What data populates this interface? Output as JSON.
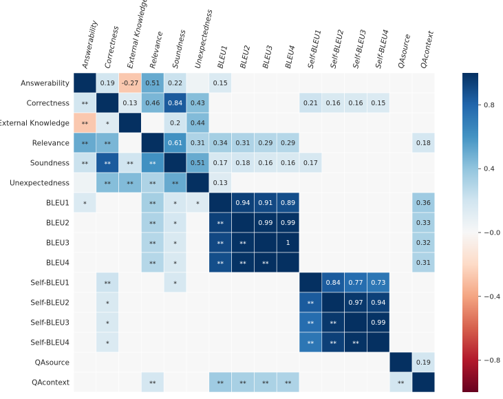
{
  "chart_data": {
    "type": "heatmap",
    "title": "",
    "rows": [
      "Answerability",
      "Correctness",
      "External Knowledge",
      "Relevance",
      "Soundness",
      "Unexpectedness",
      "BLEU1",
      "BLEU2",
      "BLEU3",
      "BLEU4",
      "Self-BLEU1",
      "Self-BLEU2",
      "Self-BLEU3",
      "Self-BLEU4",
      "QAsource",
      "QAcontext"
    ],
    "columns": [
      "Answerability",
      "Correctness",
      "External Knowledge",
      "Relevance",
      "Soundness",
      "Unexpectedness",
      "BLEU1",
      "BLEU2",
      "BLEU3",
      "BLEU4",
      "Self-BLEU1",
      "Self-BLEU2",
      "Self-BLEU3",
      "Self-BLEU4",
      "QAsource",
      "QAcontext"
    ],
    "values": [
      [
        1.0,
        0.19,
        -0.27,
        0.51,
        0.22,
        0.05,
        0.15,
        0.0,
        0.0,
        0.0,
        0.0,
        0.0,
        0.0,
        0.0,
        0.0,
        0.0
      ],
      [
        0.19,
        1.0,
        0.13,
        0.46,
        0.84,
        0.43,
        0.0,
        0.0,
        0.0,
        0.0,
        0.21,
        0.16,
        0.16,
        0.15,
        0.0,
        0.0
      ],
      [
        -0.27,
        0.13,
        1.0,
        0.0,
        0.2,
        0.44,
        0.0,
        0.0,
        0.0,
        0.0,
        0.0,
        0.0,
        0.0,
        0.0,
        0.0,
        0.0
      ],
      [
        0.51,
        0.46,
        0.0,
        1.0,
        0.61,
        0.31,
        0.34,
        0.31,
        0.29,
        0.29,
        0.0,
        0.0,
        0.0,
        0.0,
        0.0,
        0.18
      ],
      [
        0.22,
        0.84,
        0.2,
        0.61,
        1.0,
        0.51,
        0.17,
        0.18,
        0.16,
        0.16,
        0.17,
        0.0,
        0.0,
        0.0,
        0.0,
        0.0
      ],
      [
        0.05,
        0.43,
        0.44,
        0.31,
        0.51,
        1.0,
        0.13,
        0.0,
        0.0,
        0.0,
        0.0,
        0.0,
        0.0,
        0.0,
        0.0,
        0.0
      ],
      [
        0.15,
        0.0,
        0.0,
        0.34,
        0.17,
        0.13,
        1.0,
        0.94,
        0.91,
        0.89,
        0.0,
        0.0,
        0.0,
        0.0,
        0.0,
        0.36
      ],
      [
        0.0,
        0.0,
        0.0,
        0.31,
        0.18,
        0.0,
        0.94,
        1.0,
        0.99,
        0.99,
        0.0,
        0.0,
        0.0,
        0.0,
        0.0,
        0.33
      ],
      [
        0.0,
        0.0,
        0.0,
        0.29,
        0.16,
        0.0,
        0.91,
        0.99,
        1.0,
        1.0,
        0.0,
        0.0,
        0.0,
        0.0,
        0.0,
        0.32
      ],
      [
        0.0,
        0.0,
        0.0,
        0.29,
        0.16,
        0.0,
        0.89,
        0.99,
        1.0,
        1.0,
        0.0,
        0.0,
        0.0,
        0.0,
        0.0,
        0.31
      ],
      [
        0.0,
        0.21,
        0.0,
        0.0,
        0.17,
        0.0,
        0.0,
        0.0,
        0.0,
        0.0,
        1.0,
        0.84,
        0.77,
        0.73,
        0.0,
        0.0
      ],
      [
        0.0,
        0.16,
        0.0,
        0.0,
        0.0,
        0.0,
        0.0,
        0.0,
        0.0,
        0.0,
        0.84,
        1.0,
        0.97,
        0.94,
        0.0,
        0.0
      ],
      [
        0.0,
        0.16,
        0.0,
        0.0,
        0.0,
        0.0,
        0.0,
        0.0,
        0.0,
        0.0,
        0.77,
        0.97,
        1.0,
        0.99,
        0.0,
        0.0
      ],
      [
        0.0,
        0.15,
        0.0,
        0.0,
        0.0,
        0.0,
        0.0,
        0.0,
        0.0,
        0.0,
        0.73,
        0.94,
        0.99,
        1.0,
        0.0,
        0.0
      ],
      [
        0.0,
        0.0,
        0.0,
        0.0,
        0.0,
        0.0,
        0.0,
        0.0,
        0.0,
        0.0,
        0.0,
        0.0,
        0.0,
        0.0,
        1.0,
        0.19
      ],
      [
        0.0,
        0.0,
        0.0,
        0.18,
        0.0,
        0.0,
        0.36,
        0.33,
        0.32,
        0.31,
        0.0,
        0.0,
        0.0,
        0.0,
        0.19,
        1.0
      ]
    ],
    "annotations": [
      [
        "",
        "0.19",
        "-0.27",
        "0.51",
        "0.22",
        "",
        "0.15",
        "",
        "",
        "",
        "",
        "",
        "",
        "",
        "",
        ""
      ],
      [
        "**",
        "",
        "0.13",
        "0.46",
        "0.84",
        "0.43",
        "",
        "",
        "",
        "",
        "0.21",
        "0.16",
        "0.16",
        "0.15",
        "",
        ""
      ],
      [
        "**",
        "*",
        "",
        "",
        "0.2",
        "0.44",
        "",
        "",
        "",
        "",
        "",
        "",
        "",
        "",
        "",
        ""
      ],
      [
        "**",
        "**",
        "",
        "",
        "0.61",
        "0.31",
        "0.34",
        "0.31",
        "0.29",
        "0.29",
        "",
        "",
        "",
        "",
        "",
        "0.18"
      ],
      [
        "**",
        "**",
        "**",
        "**",
        "",
        "0.51",
        "0.17",
        "0.18",
        "0.16",
        "0.16",
        "0.17",
        "",
        "",
        "",
        "",
        ""
      ],
      [
        "",
        "**",
        "**",
        "**",
        "**",
        "",
        "0.13",
        "",
        "",
        "",
        "",
        "",
        "",
        "",
        "",
        ""
      ],
      [
        "*",
        "",
        "",
        "**",
        "*",
        "*",
        "",
        "0.94",
        "0.91",
        "0.89",
        "",
        "",
        "",
        "",
        "",
        "0.36"
      ],
      [
        "",
        "",
        "",
        "**",
        "*",
        "",
        "**",
        "",
        "0.99",
        "0.99",
        "",
        "",
        "",
        "",
        "",
        "0.33"
      ],
      [
        "",
        "",
        "",
        "**",
        "*",
        "",
        "**",
        "**",
        "",
        "1",
        "",
        "",
        "",
        "",
        "",
        "0.32"
      ],
      [
        "",
        "",
        "",
        "**",
        "*",
        "",
        "**",
        "**",
        "**",
        "",
        "",
        "",
        "",
        "",
        "",
        "0.31"
      ],
      [
        "",
        "**",
        "",
        "",
        "*",
        "",
        "",
        "",
        "",
        "",
        "",
        "0.84",
        "0.77",
        "0.73",
        "",
        ""
      ],
      [
        "",
        "*",
        "",
        "",
        "",
        "",
        "",
        "",
        "",
        "",
        "**",
        "",
        "0.97",
        "0.94",
        "",
        ""
      ],
      [
        "",
        "*",
        "",
        "",
        "",
        "",
        "",
        "",
        "",
        "",
        "**",
        "**",
        "",
        "0.99",
        "",
        ""
      ],
      [
        "",
        "*",
        "",
        "",
        "",
        "",
        "",
        "",
        "",
        "",
        "**",
        "**",
        "**",
        "",
        "",
        ""
      ],
      [
        "",
        "",
        "",
        "",
        "",
        "",
        "",
        "",
        "",
        "",
        "",
        "",
        "",
        "",
        "",
        "0.19"
      ],
      [
        "",
        "",
        "",
        "**",
        "",
        "",
        "**",
        "**",
        "**",
        "**",
        "",
        "",
        "",
        "",
        "**",
        ""
      ]
    ],
    "colorbar": {
      "vmin": -1.0,
      "vmax": 1.0,
      "ticks": [
        0.8,
        0.4,
        0.0,
        -0.4,
        -0.8
      ],
      "tick_labels": [
        "0.8",
        "0.4",
        "−0.0",
        "−0.4",
        "−0.8"
      ],
      "colormap": "RdBu",
      "colormap_stops": [
        "#67001f",
        "#b2182b",
        "#d6604d",
        "#f4a582",
        "#fddbc7",
        "#f7f7f7",
        "#d1e5f0",
        "#92c5de",
        "#4393c3",
        "#2166ac",
        "#053061"
      ]
    }
  }
}
